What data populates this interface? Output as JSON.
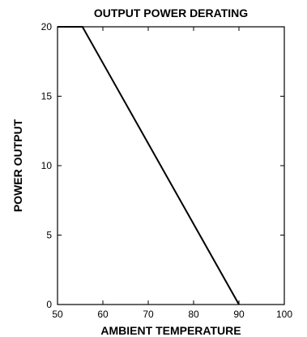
{
  "chart_data": {
    "type": "line",
    "title": "OUTPUT POWER DERATING",
    "xlabel": "AMBIENT TEMPERATURE",
    "ylabel": "POWER OUTPUT",
    "xlim": [
      50,
      100
    ],
    "ylim": [
      0,
      20
    ],
    "x_ticks": [
      50,
      60,
      70,
      80,
      90,
      100
    ],
    "y_ticks": [
      0,
      5,
      10,
      15,
      20
    ],
    "x_tick_labels": [
      "50",
      "60",
      "70",
      "80",
      "90",
      "100"
    ],
    "y_tick_labels": [
      "0",
      "5",
      "10",
      "15",
      "20"
    ],
    "grid": false,
    "series": [
      {
        "x": [
          50,
          55.5,
          90
        ],
        "y": [
          20,
          20,
          0
        ]
      }
    ],
    "colors": {
      "line": "#000000",
      "axis": "#000000"
    }
  }
}
